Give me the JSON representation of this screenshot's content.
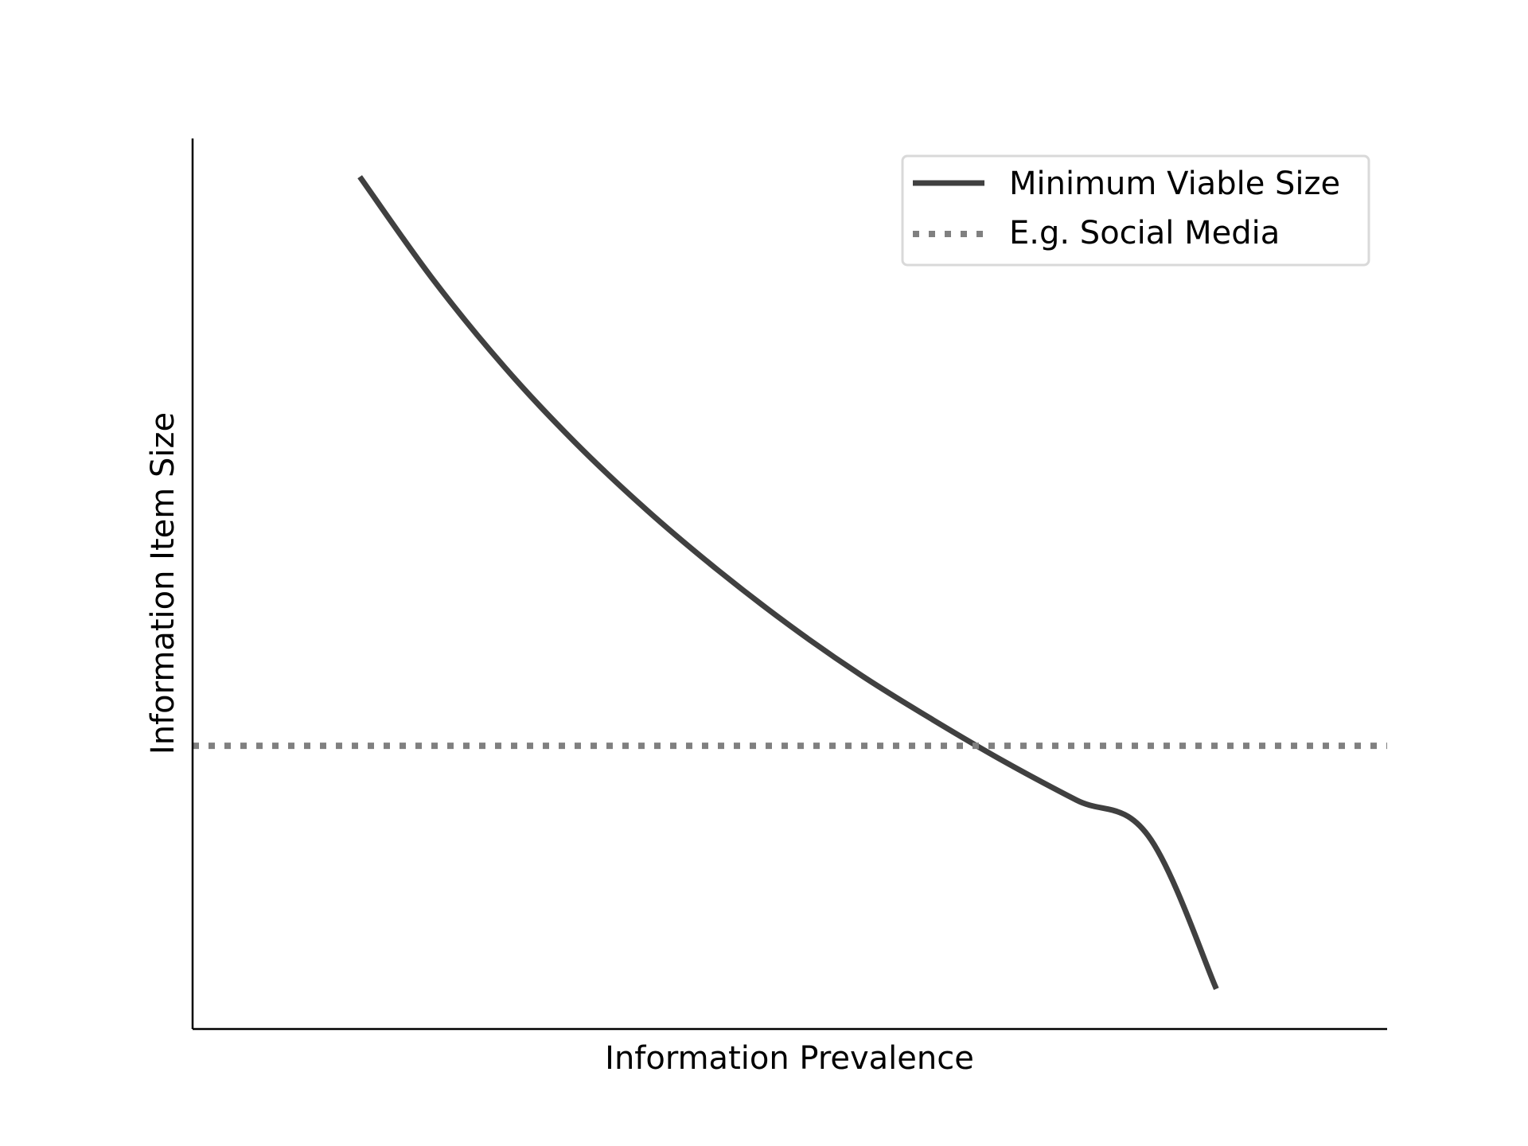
{
  "chart_data": {
    "type": "line",
    "title": "",
    "xlabel": "Information Prevalence",
    "ylabel": "Information Item Size",
    "xlim": [
      0,
      1
    ],
    "ylim": [
      0,
      1
    ],
    "grid": false,
    "ticks_shown": false,
    "legend_placement": "top-right",
    "series": [
      {
        "name": "Minimum Viable Size",
        "style": "solid",
        "color": "#404040",
        "x": [
          0.14,
          0.2,
          0.26,
          0.32,
          0.38,
          0.44,
          0.5,
          0.56,
          0.62,
          0.68,
          0.74,
          0.8,
          0.857
        ],
        "y": [
          0.957,
          0.844,
          0.745,
          0.659,
          0.583,
          0.515,
          0.453,
          0.397,
          0.347,
          0.3,
          0.257,
          0.217,
          0.045
        ]
      },
      {
        "name": "E.g. Social Media",
        "style": "dotted",
        "color": "#808080",
        "x": [
          0,
          1
        ],
        "y": [
          0.318,
          0.318
        ]
      }
    ]
  }
}
